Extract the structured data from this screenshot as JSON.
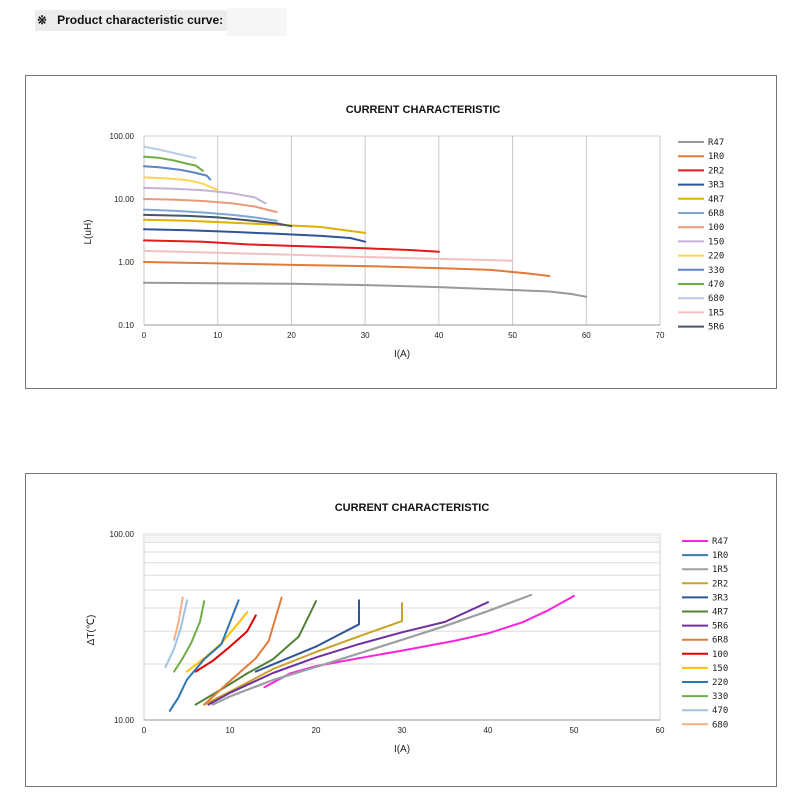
{
  "header": {
    "symbol": "※",
    "title": "Product characteristic curve:"
  },
  "chart_data": [
    {
      "type": "line",
      "title": "CURRENT CHARACTERISTIC",
      "xlabel": "I(A)",
      "ylabel": "L(uH)",
      "xlim": [
        0,
        70
      ],
      "ylim": [
        0.1,
        100
      ],
      "yscale": "log",
      "xticks": [
        "0",
        "10",
        "20",
        "30",
        "40",
        "50",
        "60",
        "70"
      ],
      "yticks": [
        "100.00",
        "10.00",
        "1.00",
        "0.10"
      ],
      "grid": "vertical",
      "legend_position": "right",
      "series": [
        {
          "name": "R47",
          "color": "#999999",
          "points": [
            [
              0,
              0.47
            ],
            [
              10,
              0.46
            ],
            [
              20,
              0.45
            ],
            [
              30,
              0.43
            ],
            [
              40,
              0.4
            ],
            [
              50,
              0.36
            ],
            [
              55,
              0.34
            ],
            [
              58,
              0.31
            ],
            [
              60,
              0.28
            ]
          ]
        },
        {
          "name": "1R0",
          "color": "#e07b39",
          "points": [
            [
              0,
              1.0
            ],
            [
              10,
              0.95
            ],
            [
              20,
              0.9
            ],
            [
              30,
              0.86
            ],
            [
              40,
              0.8
            ],
            [
              47,
              0.75
            ],
            [
              52,
              0.66
            ],
            [
              55,
              0.6
            ]
          ]
        },
        {
          "name": "2R2",
          "color": "#e31a1c",
          "points": [
            [
              0,
              2.2
            ],
            [
              8,
              2.1
            ],
            [
              14,
              1.9
            ],
            [
              20,
              1.8
            ],
            [
              30,
              1.65
            ],
            [
              36,
              1.55
            ],
            [
              40,
              1.45
            ]
          ]
        },
        {
          "name": "3R3",
          "color": "#2f5597",
          "points": [
            [
              0,
              3.3
            ],
            [
              6,
              3.2
            ],
            [
              12,
              3.0
            ],
            [
              18,
              2.8
            ],
            [
              24,
              2.6
            ],
            [
              28,
              2.4
            ],
            [
              30,
              2.1
            ]
          ]
        },
        {
          "name": "4R7",
          "color": "#e0b000",
          "points": [
            [
              0,
              4.7
            ],
            [
              6,
              4.5
            ],
            [
              12,
              4.2
            ],
            [
              18,
              3.9
            ],
            [
              24,
              3.6
            ],
            [
              28,
              3.1
            ],
            [
              30,
              2.9
            ]
          ]
        },
        {
          "name": "6R8",
          "color": "#7fa7d4",
          "points": [
            [
              0,
              6.8
            ],
            [
              4,
              6.5
            ],
            [
              8,
              6.1
            ],
            [
              12,
              5.6
            ],
            [
              15,
              5.1
            ],
            [
              18,
              4.5
            ]
          ]
        },
        {
          "name": "100",
          "color": "#e89a78",
          "points": [
            [
              0,
              10
            ],
            [
              4,
              9.8
            ],
            [
              8,
              9.3
            ],
            [
              12,
              8.5
            ],
            [
              15,
              7.6
            ],
            [
              18,
              6.2
            ]
          ]
        },
        {
          "name": "150",
          "color": "#c4b3d6",
          "points": [
            [
              0,
              15
            ],
            [
              4,
              14.5
            ],
            [
              8,
              13.8
            ],
            [
              12,
              12.3
            ],
            [
              15,
              10.6
            ],
            [
              16.5,
              8.5
            ]
          ]
        },
        {
          "name": "220",
          "color": "#ffd44d",
          "points": [
            [
              0,
              22
            ],
            [
              3,
              21.2
            ],
            [
              6,
              19.8
            ],
            [
              8,
              17.5
            ],
            [
              9,
              15.5
            ],
            [
              10,
              14
            ]
          ]
        },
        {
          "name": "330",
          "color": "#5b85c4",
          "points": [
            [
              0,
              33
            ],
            [
              2,
              32
            ],
            [
              5,
              29
            ],
            [
              7,
              26
            ],
            [
              8.5,
              23.5
            ],
            [
              9,
              20.5
            ]
          ]
        },
        {
          "name": "470",
          "color": "#70ad47",
          "points": [
            [
              0,
              47
            ],
            [
              2,
              45
            ],
            [
              4,
              41
            ],
            [
              6,
              36
            ],
            [
              7,
              34
            ],
            [
              8,
              28
            ]
          ]
        },
        {
          "name": "680",
          "color": "#b8cce4",
          "points": [
            [
              0,
              68
            ],
            [
              2,
              61
            ],
            [
              4,
              54
            ],
            [
              5.5,
              49
            ],
            [
              7,
              45
            ]
          ]
        },
        {
          "name": "1R5",
          "color": "#f4c0c0",
          "points": [
            [
              0,
              1.5
            ],
            [
              10,
              1.4
            ],
            [
              20,
              1.3
            ],
            [
              30,
              1.2
            ],
            [
              40,
              1.12
            ],
            [
              46,
              1.08
            ],
            [
              50,
              1.05
            ]
          ]
        },
        {
          "name": "5R6",
          "color": "#44546a",
          "points": [
            [
              0,
              5.6
            ],
            [
              6,
              5.4
            ],
            [
              10,
              5.1
            ],
            [
              14,
              4.6
            ],
            [
              18,
              4.1
            ],
            [
              20,
              3.7
            ]
          ]
        }
      ]
    },
    {
      "type": "line",
      "title": "CURRENT CHARACTERISTIC",
      "xlabel": "I(A)",
      "ylabel": "ΔT(℃)",
      "xlim": [
        0,
        60
      ],
      "ylim": [
        10,
        100
      ],
      "yscale": "log",
      "xticks": [
        "0",
        "10",
        "20",
        "30",
        "40",
        "50",
        "60"
      ],
      "yticks": [
        "100.00",
        "10.00"
      ],
      "grid": "horizontal",
      "legend_position": "right",
      "series": [
        {
          "name": "R47",
          "color": "#ff22dd",
          "points": [
            [
              14,
              15
            ],
            [
              17,
              17.8
            ],
            [
              20,
              19.5
            ],
            [
              25,
              21.5
            ],
            [
              30,
              23.6
            ],
            [
              36,
              26.6
            ],
            [
              40,
              29.2
            ],
            [
              44,
              33.5
            ],
            [
              47,
              38.9
            ],
            [
              50,
              46.5
            ]
          ]
        },
        {
          "name": "1R0",
          "color": "#3a7ca5",
          "points": [
            [
              8,
              12.1
            ],
            [
              10,
              13.4
            ],
            [
              15,
              16.4
            ],
            [
              20,
              19.3
            ],
            [
              25,
              22.8
            ],
            [
              30,
              27
            ],
            [
              35,
              32
            ],
            [
              40,
              38.5
            ],
            [
              45,
              47
            ]
          ]
        },
        {
          "name": "1R5",
          "color": "#a0a0a0",
          "points": [
            [
              8,
              12.1
            ],
            [
              10,
              13.4
            ],
            [
              15,
              16.4
            ],
            [
              20,
              19.3
            ],
            [
              25,
              22.8
            ],
            [
              30,
              27
            ],
            [
              35,
              32
            ],
            [
              40,
              38.5
            ],
            [
              45,
              47
            ]
          ]
        },
        {
          "name": "2R2",
          "color": "#c9a227",
          "points": [
            [
              7,
              12.1
            ],
            [
              10,
              14.2
            ],
            [
              15,
              18.8
            ],
            [
              20,
              23.2
            ],
            [
              25,
              28.2
            ],
            [
              30,
              34
            ],
            [
              30,
              42.5
            ]
          ]
        },
        {
          "name": "3R3",
          "color": "#2f5597",
          "points": [
            [
              13,
              18.2
            ],
            [
              16,
              20.8
            ],
            [
              20,
              24.8
            ],
            [
              25,
              32.7
            ],
            [
              25,
              44
            ]
          ]
        },
        {
          "name": "4R7",
          "color": "#548235",
          "points": [
            [
              6,
              12.1
            ],
            [
              9,
              14.6
            ],
            [
              12,
              17.8
            ],
            [
              15,
              21.2
            ],
            [
              18,
              28.1
            ],
            [
              20,
              43.5
            ]
          ]
        },
        {
          "name": "5R6",
          "color": "#7030a0",
          "points": [
            [
              7.5,
              12.1
            ],
            [
              10,
              14
            ],
            [
              15,
              17.9
            ],
            [
              20,
              21.7
            ],
            [
              25,
              25.6
            ],
            [
              30,
              29.6
            ],
            [
              35,
              33.7
            ],
            [
              40,
              43
            ]
          ]
        },
        {
          "name": "6R8",
          "color": "#e07b39",
          "points": [
            [
              7,
              12.1
            ],
            [
              10,
              16.2
            ],
            [
              13,
              21.5
            ],
            [
              14.5,
              26.6
            ],
            [
              16,
              45.5
            ]
          ]
        },
        {
          "name": "100",
          "color": "#e00000",
          "points": [
            [
              6,
              18.2
            ],
            [
              8,
              20.8
            ],
            [
              10,
              24.8
            ],
            [
              12,
              30
            ],
            [
              13,
              36.5
            ]
          ]
        },
        {
          "name": "150",
          "color": "#ffc000",
          "points": [
            [
              5,
              18.2
            ],
            [
              7,
              21.5
            ],
            [
              9,
              25.8
            ],
            [
              11,
              33.3
            ],
            [
              12,
              38
            ]
          ]
        },
        {
          "name": "220",
          "color": "#2e75b6",
          "points": [
            [
              3,
              11.2
            ],
            [
              4,
              13.2
            ],
            [
              5,
              16.5
            ],
            [
              7,
              21.2
            ],
            [
              9,
              25.6
            ],
            [
              11,
              44
            ]
          ]
        },
        {
          "name": "330",
          "color": "#70ad47",
          "points": [
            [
              3.5,
              18.2
            ],
            [
              4.5,
              21.5
            ],
            [
              5.5,
              26
            ],
            [
              6.5,
              33.7
            ],
            [
              7,
              43.5
            ]
          ]
        },
        {
          "name": "470",
          "color": "#9dc3e6",
          "points": [
            [
              2.5,
              19.3
            ],
            [
              3.5,
              24.2
            ],
            [
              4.3,
              31.5
            ],
            [
              5,
              44
            ]
          ]
        },
        {
          "name": "680",
          "color": "#f4b183",
          "points": [
            [
              3.5,
              27
            ],
            [
              4,
              33.3
            ],
            [
              4.5,
              45.5
            ]
          ]
        }
      ]
    }
  ]
}
